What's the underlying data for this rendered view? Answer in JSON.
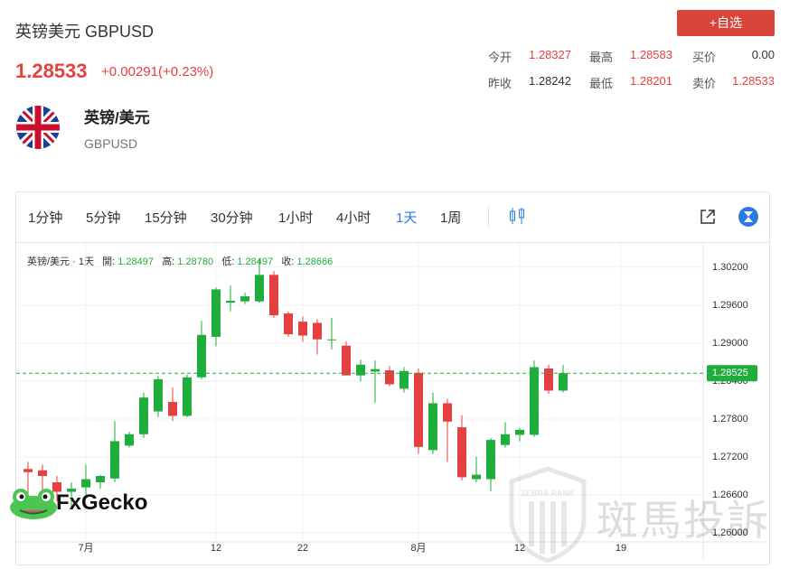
{
  "header": {
    "name": "英镑美元 GBPUSD",
    "price": "1.28533",
    "change": "+0.00291(+0.23%)",
    "button": "+自选"
  },
  "quote": {
    "rows": [
      [
        {
          "label": "今开",
          "value": "1.28327"
        },
        {
          "label": "最高",
          "value": "1.28583"
        },
        {
          "label": "买价",
          "value": "0.00"
        }
      ],
      [
        {
          "label": "昨收",
          "value": "1.28242"
        },
        {
          "label": "最低",
          "value": "1.28201"
        },
        {
          "label": "卖价",
          "value": "1.28533"
        }
      ]
    ]
  },
  "symbol": {
    "title": "英镑/美元",
    "code": "GBPUSD"
  },
  "toolbar": {
    "intervals": [
      "1分钟",
      "5分钟",
      "15分钟",
      "30分钟",
      "1小时",
      "4小时",
      "1天",
      "1周"
    ]
  },
  "legend": {
    "label": "英镑/美元 · 1天",
    "items": [
      {
        "key": "開:",
        "value": "1.28497"
      },
      {
        "key": "高:",
        "value": "1.28780"
      },
      {
        "key": "低:",
        "value": "1.28497"
      },
      {
        "key": "收:",
        "value": "1.28666"
      }
    ]
  },
  "watermarks": {
    "logo": "FxGecko",
    "zebra": "斑馬投訴",
    "zebra_badge": "ZEBRA RANK"
  },
  "chart_data": {
    "type": "candlestick",
    "open": [
      1.2701,
      1.2699,
      1.268,
      1.2665,
      1.2672,
      1.268,
      1.2686,
      1.2738,
      1.2756,
      1.2792,
      1.2807,
      1.2785,
      1.2846,
      1.291,
      1.2964,
      1.2966,
      1.2966,
      1.3008,
      1.2947,
      1.2934,
      1.2932,
      1.2905,
      1.2896,
      1.2849,
      1.2855,
      1.2857,
      1.2828,
      1.2853,
      1.2731,
      1.2805,
      1.2767,
      1.2685,
      1.2685,
      1.2739,
      1.2755,
      1.2755,
      1.286,
      1.2825
    ],
    "high": [
      1.2712,
      1.2708,
      1.269,
      1.268,
      1.2708,
      1.2692,
      1.2777,
      1.276,
      1.2822,
      1.2848,
      1.283,
      1.285,
      1.2935,
      1.2988,
      1.2991,
      1.298,
      1.3033,
      1.3014,
      1.295,
      1.2942,
      1.2938,
      1.294,
      1.2903,
      1.2874,
      1.2873,
      1.2864,
      1.2862,
      1.286,
      1.2822,
      1.2812,
      1.2786,
      1.272,
      1.275,
      1.2775,
      1.2766,
      1.2873,
      1.2866,
      1.2866
    ],
    "low": [
      1.265,
      1.266,
      1.265,
      1.264,
      1.266,
      1.267,
      1.268,
      1.2735,
      1.275,
      1.2783,
      1.2777,
      1.2783,
      1.2843,
      1.2895,
      1.295,
      1.2962,
      1.2964,
      1.294,
      1.291,
      1.2902,
      1.2882,
      1.289,
      1.2849,
      1.284,
      1.2806,
      1.2832,
      1.2822,
      1.2725,
      1.2725,
      1.2712,
      1.2683,
      1.268,
      1.2666,
      1.2735,
      1.2745,
      1.2752,
      1.282,
      1.2822
    ],
    "close": [
      1.2696,
      1.269,
      1.2665,
      1.267,
      1.2685,
      1.269,
      1.2745,
      1.2756,
      1.2814,
      1.2843,
      1.2785,
      1.2846,
      1.2913,
      1.2985,
      1.2967,
      1.2974,
      1.3008,
      1.2944,
      1.2914,
      1.2912,
      1.2906,
      1.2906,
      1.2849,
      1.2866,
      1.2859,
      1.2835,
      1.2856,
      1.2736,
      1.2805,
      1.2776,
      1.2688,
      1.2692,
      1.2747,
      1.2756,
      1.2763,
      1.2862,
      1.2825,
      1.28525
    ],
    "up_color": "#1fae3c",
    "down_color": "#e3403f",
    "ylim": [
      1.25858,
      1.30584
    ],
    "yticks": [
      {
        "value": 1.302,
        "label": "1.30200"
      },
      {
        "value": 1.296,
        "label": "1.29600"
      },
      {
        "value": 1.29,
        "label": "1.29000"
      },
      {
        "value": 1.284,
        "label": "1.28400"
      },
      {
        "value": 1.278,
        "label": "1.27800"
      },
      {
        "value": 1.272,
        "label": "1.27200"
      },
      {
        "value": 1.266,
        "label": "1.26600"
      },
      {
        "value": 1.26,
        "label": "1.26000"
      }
    ],
    "xlim": [
      -0.8125,
      46.6875
    ],
    "xticks": [
      {
        "value": 4,
        "label": "7月"
      },
      {
        "value": 13,
        "label": "12"
      },
      {
        "value": 19,
        "label": "22"
      },
      {
        "value": 27,
        "label": "8月"
      },
      {
        "value": 34,
        "label": "12"
      },
      {
        "value": 41,
        "label": "19"
      }
    ],
    "last_price": {
      "value": 1.28525,
      "label": "1.28525"
    }
  }
}
